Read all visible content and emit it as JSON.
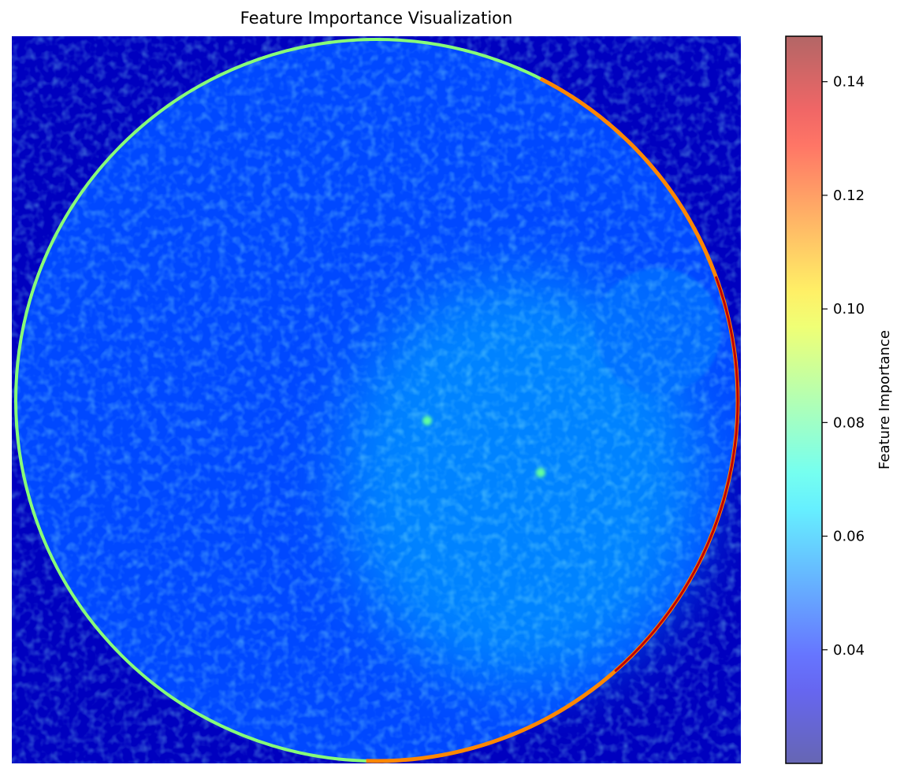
{
  "chart_data": {
    "type": "heatmap",
    "title": "Feature Importance Visualization",
    "xlabel": "",
    "ylabel": "",
    "axes_visible": false,
    "colormap": "jet",
    "colorbar": {
      "label": "Feature Importance",
      "range": [
        0.02,
        0.148
      ],
      "ticks": [
        0.04,
        0.06,
        0.08,
        0.1,
        0.12,
        0.14
      ],
      "tick_labels": [
        "0.04",
        "0.06",
        "0.08",
        "0.10",
        "0.12",
        "0.14"
      ],
      "alpha": 0.6
    },
    "background_value": 0.028,
    "disc_value": 0.045,
    "features": [
      {
        "name": "disc-rim",
        "value": 0.14
      },
      {
        "name": "upper-right-region",
        "value": 0.05
      },
      {
        "name": "center-right-region",
        "value": 0.055
      },
      {
        "name": "bright-spot",
        "value": 0.08
      }
    ]
  }
}
